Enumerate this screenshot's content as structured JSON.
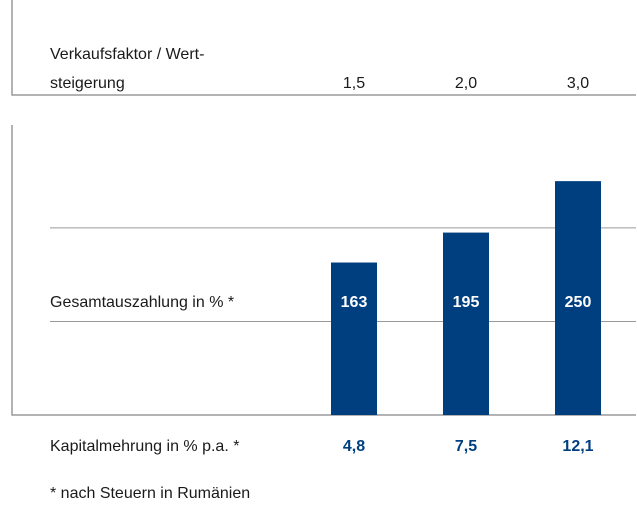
{
  "chart_data": {
    "type": "bar",
    "category_label": [
      "Verkaufsfaktor / Wert-",
      "steigerung"
    ],
    "categories": [
      "1,5",
      "2,0",
      "3,0"
    ],
    "series": [
      {
        "name": "Gesamtauszahlung in % *",
        "color": "#003f7f",
        "values": [
          163,
          195,
          250
        ]
      }
    ],
    "ylim": [
      0,
      310
    ],
    "yticks": [
      100,
      200
    ],
    "grid": true,
    "extra_row": {
      "label": "Kapitalmehrung in % p.a. *",
      "values": [
        "4,8",
        "7,5",
        "12,1"
      ]
    },
    "footnote": "* nach Steuern in Rumänien"
  }
}
